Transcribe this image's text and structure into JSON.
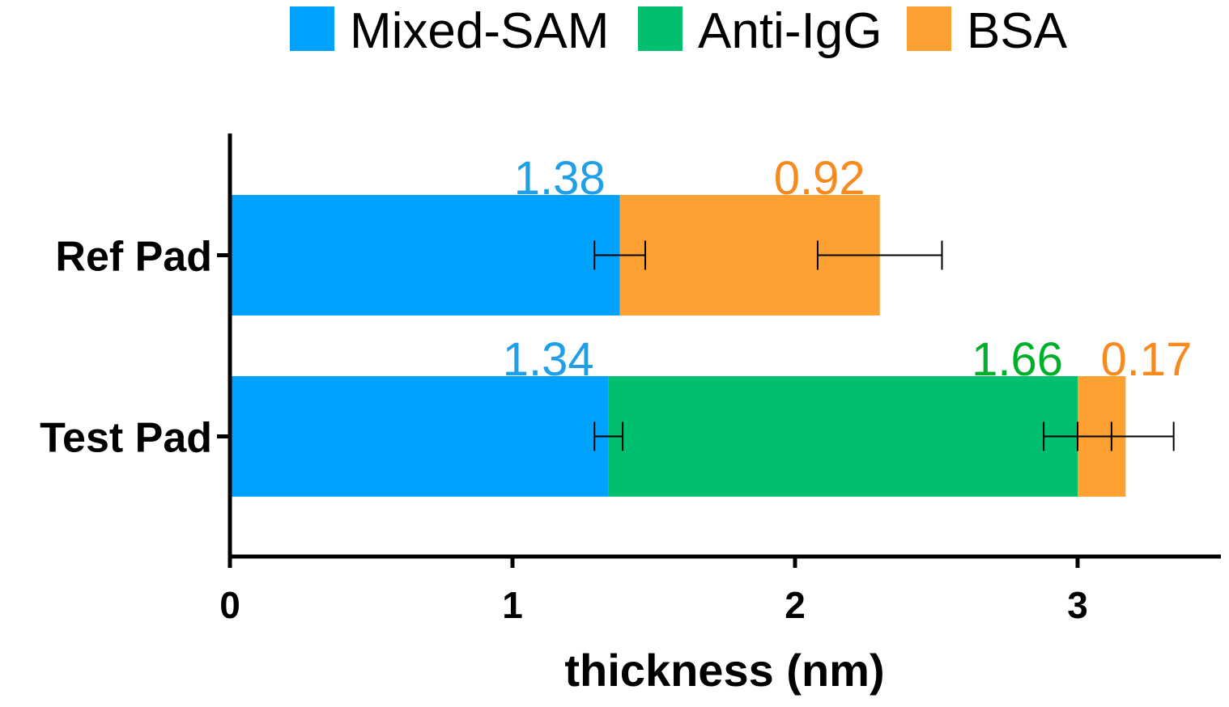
{
  "chart_data": {
    "type": "bar",
    "orientation": "horizontal",
    "stacked": true,
    "categories": [
      "Ref Pad",
      "Test Pad"
    ],
    "xlabel": "thickness (nm)",
    "xlim": [
      0,
      3.5
    ],
    "xticks": [
      0,
      1,
      2,
      3
    ],
    "grid": false,
    "legend_position": "top",
    "series": [
      {
        "name": "Mixed-SAM",
        "color": "#00A2FF",
        "label_color": "#1E9FE8",
        "values": [
          1.38,
          1.34
        ],
        "errors": [
          0.09,
          0.05
        ]
      },
      {
        "name": "Anti-IgG",
        "color": "#00BF6F",
        "label_color": "#00B02A",
        "values": [
          0,
          1.66
        ],
        "errors": [
          0,
          0.12
        ]
      },
      {
        "name": "BSA",
        "color": "#FFA033",
        "label_color": "#F7891E",
        "values": [
          0.92,
          0.17
        ],
        "errors": [
          0.22,
          0.17
        ]
      }
    ],
    "value_labels": [
      {
        "category": 0,
        "series": 0,
        "text": "1.38"
      },
      {
        "category": 0,
        "series": 2,
        "text": "0.92"
      },
      {
        "category": 1,
        "series": 0,
        "text": "1.34"
      },
      {
        "category": 1,
        "series": 1,
        "text": "1.66"
      },
      {
        "category": 1,
        "series": 2,
        "text": "0.17"
      }
    ]
  }
}
